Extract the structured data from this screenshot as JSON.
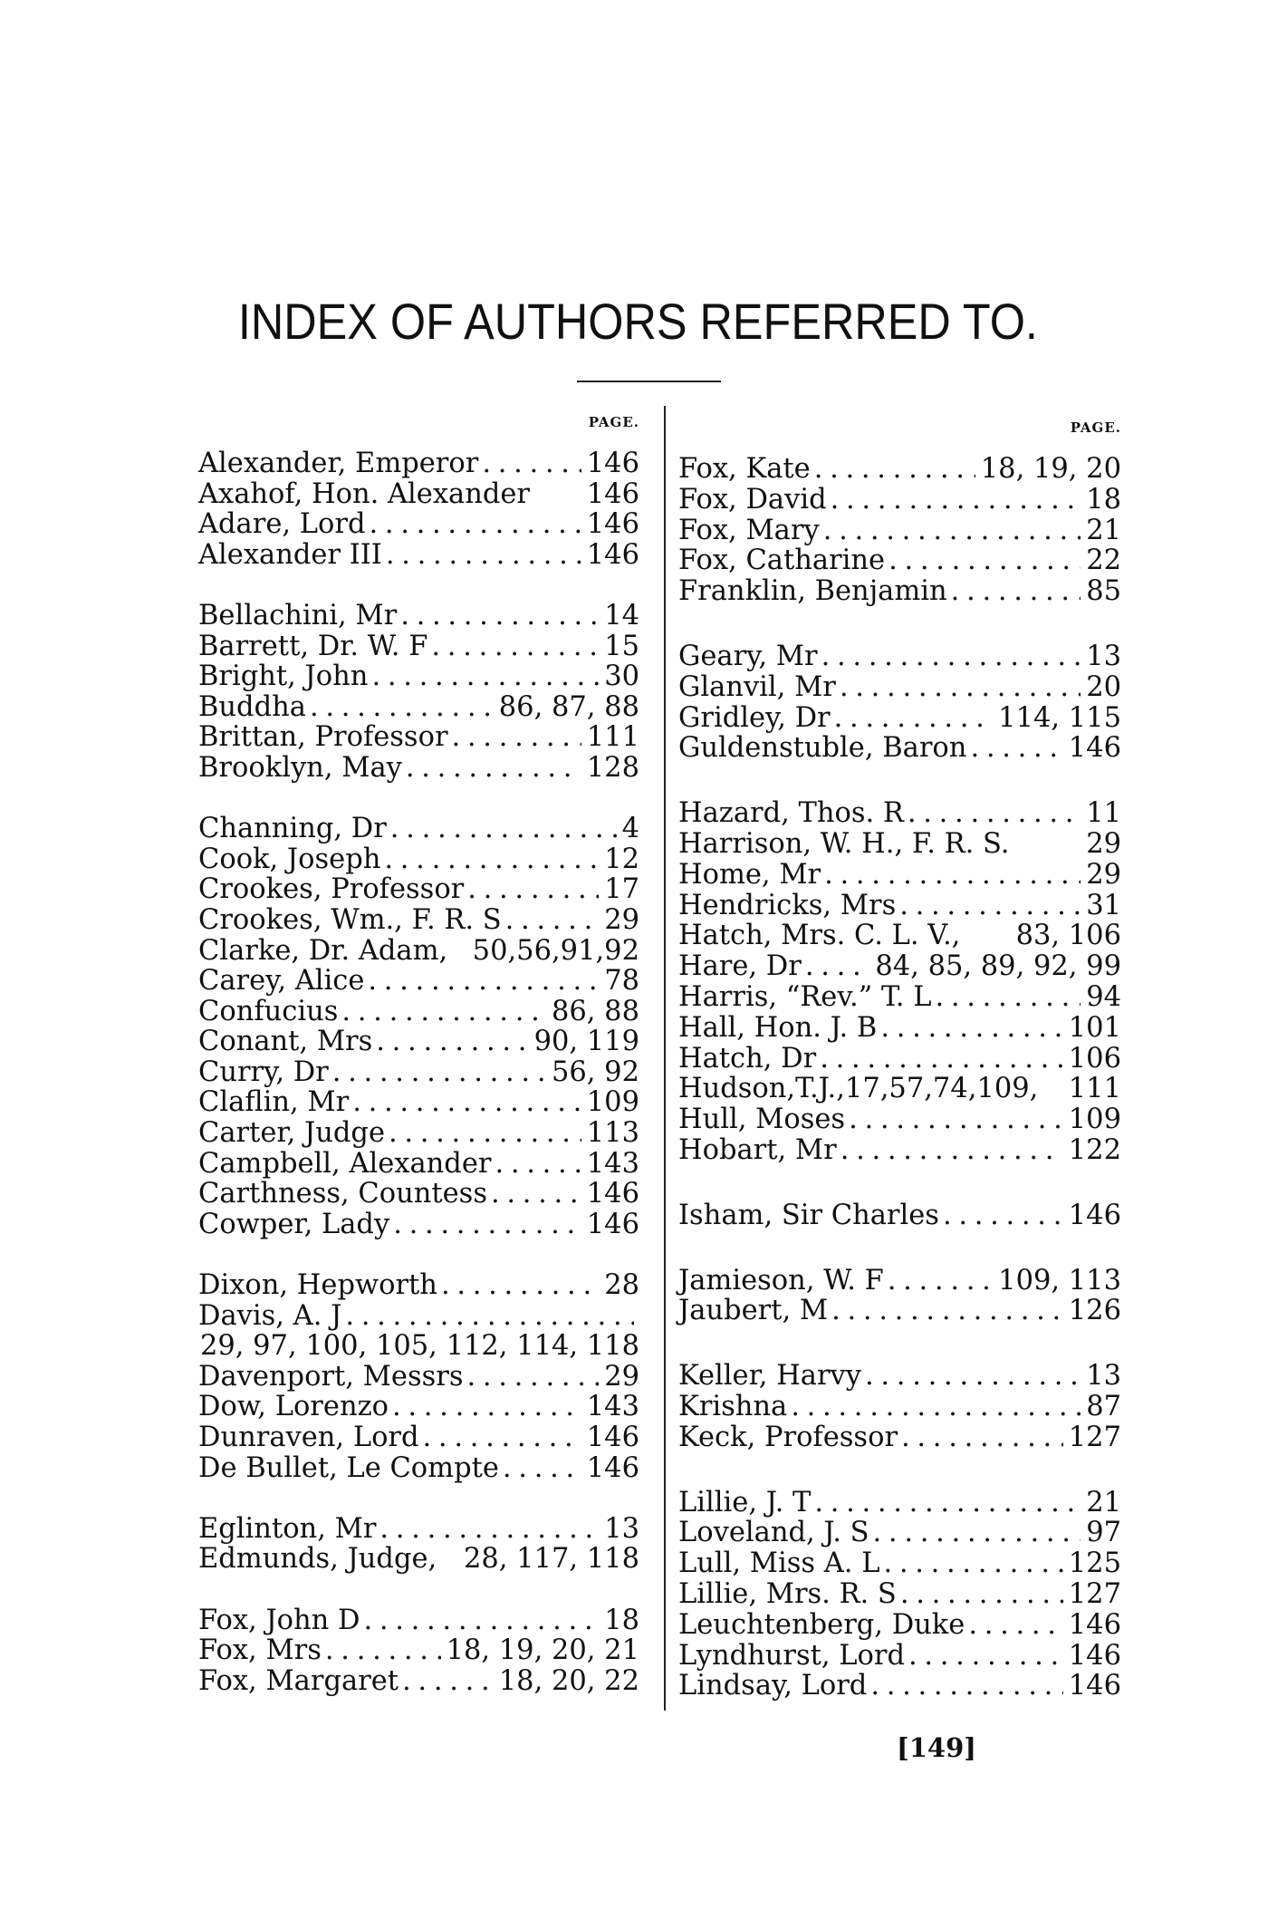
{
  "title": "INDEX OF AUTHORS REFERRED TO.",
  "page_header": "PAGE.",
  "page_number": "[149]",
  "left_column": [
    {
      "name": "Alexander, Emperor",
      "pages": "146",
      "dots": true
    },
    {
      "name": "Axahof, Hon. Alexander",
      "pages": "146",
      "dots": false
    },
    {
      "name": "Adare, Lord",
      "pages": "146",
      "dots": true
    },
    {
      "name": "Alexander III",
      "pages": "146",
      "dots": true
    },
    {
      "gap": true
    },
    {
      "name": "Bellachini, Mr",
      "pages": "14",
      "dots": true
    },
    {
      "name": "Barrett, Dr. W. F",
      "pages": "15",
      "dots": true
    },
    {
      "name": "Bright, John",
      "pages": "30",
      "dots": true
    },
    {
      "name": "Buddha",
      "pages": "86, 87, 88",
      "dots": true
    },
    {
      "name": "Brittan, Professor",
      "pages": "111",
      "dots": true
    },
    {
      "name": "Brooklyn, May",
      "pages": "128",
      "dots": true
    },
    {
      "gap": true
    },
    {
      "name": "Channing, Dr",
      "pages": "4",
      "dots": true
    },
    {
      "name": "Cook, Joseph",
      "pages": "12",
      "dots": true
    },
    {
      "name": "Crookes, Professor",
      "pages": "17",
      "dots": true
    },
    {
      "name": "Crookes, Wm., F. R. S",
      "pages": "29",
      "dots": true
    },
    {
      "name": "Clarke, Dr. Adam,",
      "pages": "50,56,91,92",
      "dots": false
    },
    {
      "name": "Carey, Alice",
      "pages": "78",
      "dots": true
    },
    {
      "name": "Confucius",
      "pages": "86, 88",
      "dots": true
    },
    {
      "name": "Conant, Mrs",
      "pages": "90, 119",
      "dots": true
    },
    {
      "name": "Curry, Dr",
      "pages": "56, 92",
      "dots": true
    },
    {
      "name": "Claflin, Mr",
      "pages": "109",
      "dots": true
    },
    {
      "name": "Carter, Judge",
      "pages": "113",
      "dots": true
    },
    {
      "name": "Campbell, Alexander",
      "pages": "143",
      "dots": true
    },
    {
      "name": "Carthness, Countess",
      "pages": "146",
      "dots": true
    },
    {
      "name": "Cowper, Lady",
      "pages": "146",
      "dots": true
    },
    {
      "gap": true
    },
    {
      "name": "Dixon, Hepworth",
      "pages": "28",
      "dots": true
    },
    {
      "name": "Davis, A. J",
      "pages": "",
      "dots": true
    },
    {
      "name": "",
      "pages": "29, 97, 100, 105, 112, 114, 118",
      "dots": false,
      "continuation": true
    },
    {
      "name": "Davenport, Messrs",
      "pages": "29",
      "dots": true
    },
    {
      "name": "Dow, Lorenzo",
      "pages": "143",
      "dots": true
    },
    {
      "name": "Dunraven, Lord",
      "pages": "146",
      "dots": true
    },
    {
      "name": "De Bullet, Le Compte",
      "pages": "146",
      "dots": true
    },
    {
      "gap": true
    },
    {
      "name": "Eglinton, Mr",
      "pages": "13",
      "dots": true
    },
    {
      "name": "Edmunds, Judge,",
      "pages": "28, 117, 118",
      "dots": false
    },
    {
      "gap": true
    },
    {
      "name": "Fox, John D",
      "pages": "18",
      "dots": true
    },
    {
      "name": "Fox, Mrs",
      "pages": "18, 19, 20, 21",
      "dots": true
    },
    {
      "name": "Fox, Margaret",
      "pages": "18, 20, 22",
      "dots": true
    }
  ],
  "right_column": [
    {
      "name": "Fox, Kate",
      "pages": "18, 19, 20",
      "dots": true
    },
    {
      "name": "Fox, David",
      "pages": "18",
      "dots": true
    },
    {
      "name": "Fox, Mary",
      "pages": "21",
      "dots": true
    },
    {
      "name": "Fox, Catharine",
      "pages": "22",
      "dots": true
    },
    {
      "name": "Franklin, Benjamin",
      "pages": "85",
      "dots": true
    },
    {
      "gap": true
    },
    {
      "name": "Geary, Mr",
      "pages": "13",
      "dots": true
    },
    {
      "name": "Glanvil, Mr",
      "pages": "20",
      "dots": true
    },
    {
      "name": "Gridley, Dr",
      "pages": "114, 115",
      "dots": true
    },
    {
      "name": "Guldenstuble, Baron",
      "pages": "146",
      "dots": true
    },
    {
      "gap": true
    },
    {
      "name": "Hazard, Thos. R",
      "pages": "11",
      "dots": true
    },
    {
      "name": "Harrison, W. H., F. R. S.",
      "pages": "29",
      "dots": false
    },
    {
      "name": "Home, Mr",
      "pages": "29",
      "dots": true
    },
    {
      "name": "Hendricks, Mrs",
      "pages": "31",
      "dots": true
    },
    {
      "name": "Hatch, Mrs. C. L. V.,",
      "pages": "83, 106",
      "dots": false
    },
    {
      "name": "Hare, Dr",
      "pages": "84, 85, 89, 92, 99",
      "dots": true
    },
    {
      "name": "Harris, “Rev.” T. L",
      "pages": "94",
      "dots": true
    },
    {
      "name": "Hall, Hon. J. B",
      "pages": "101",
      "dots": true
    },
    {
      "name": "Hatch, Dr",
      "pages": "106",
      "dots": true
    },
    {
      "name": "Hudson,T.J.,17,57,74,109,",
      "pages": "111",
      "dots": false
    },
    {
      "name": "Hull, Moses",
      "pages": "109",
      "dots": true
    },
    {
      "name": "Hobart, Mr",
      "pages": "122",
      "dots": true
    },
    {
      "gap": true
    },
    {
      "name": "Isham, Sir Charles",
      "pages": "146",
      "dots": true
    },
    {
      "gap": true
    },
    {
      "name": "Jamieson, W. F",
      "pages": "109, 113",
      "dots": true
    },
    {
      "name": "Jaubert, M",
      "pages": "126",
      "dots": true
    },
    {
      "gap": true
    },
    {
      "name": "Keller, Harvy",
      "pages": "13",
      "dots": true
    },
    {
      "name": "Krishna",
      "pages": "87",
      "dots": true
    },
    {
      "name": "Keck, Professor",
      "pages": "127",
      "dots": true
    },
    {
      "gap": true
    },
    {
      "name": "Lillie, J. T",
      "pages": "21",
      "dots": true
    },
    {
      "name": "Loveland, J. S",
      "pages": "97",
      "dots": true
    },
    {
      "name": "Lull, Miss A. L",
      "pages": "125",
      "dots": true
    },
    {
      "name": "Lillie, Mrs. R. S",
      "pages": "127",
      "dots": true
    },
    {
      "name": "Leuchtenberg, Duke",
      "pages": "146",
      "dots": true
    },
    {
      "name": "Lyndhurst, Lord",
      "pages": "146",
      "dots": true
    },
    {
      "name": "Lindsay, Lord",
      "pages": "146",
      "dots": true
    }
  ]
}
